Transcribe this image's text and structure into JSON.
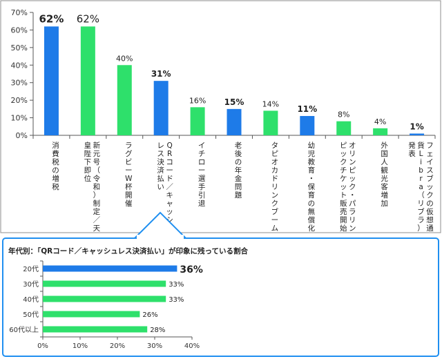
{
  "chart_data": [
    {
      "type": "bar",
      "orientation": "vertical",
      "title": "",
      "ylim": [
        0,
        70
      ],
      "yticks": [
        "0%",
        "10%",
        "20%",
        "30%",
        "40%",
        "50%",
        "60%",
        "70%"
      ],
      "grid": false,
      "categories": [
        "消費税の増税",
        "新元号（令和）制定／天皇陛下即位",
        "ラグビーW杯開催",
        "QRコード／キャッシュレス決済払い",
        "イチロー選手引退",
        "老後の年金問題",
        "タピオカドリンクブーム",
        "幼児教育・保育の無償化",
        "オリンピック・パラリンピックチケット販売開始",
        "外国人観光客増加",
        "フェイスブックの仮想通貨Libra（リブラ）発表"
      ],
      "values": [
        62,
        62,
        40,
        31,
        16,
        15,
        14,
        11,
        8,
        4,
        1
      ],
      "value_labels": [
        "62%",
        "62%",
        "40%",
        "31%",
        "16%",
        "15%",
        "14%",
        "11%",
        "8%",
        "4%",
        "1%"
      ],
      "colors": [
        "#1e7be8",
        "#2ee06b",
        "#2ee06b",
        "#1e7be8",
        "#2ee06b",
        "#1e7be8",
        "#2ee06b",
        "#1e7be8",
        "#2ee06b",
        "#2ee06b",
        "#1e7be8"
      ]
    },
    {
      "type": "bar",
      "orientation": "horizontal",
      "title": "年代別：「QRコード／キャッシュレス決済払い」が印象に残っている割合",
      "xlim": [
        0,
        40
      ],
      "xticks": [
        "0%",
        "10%",
        "20%",
        "30%",
        "40%"
      ],
      "categories": [
        "20代",
        "30代",
        "40代",
        "50代",
        "60代以上"
      ],
      "values": [
        36,
        33,
        33,
        26,
        28
      ],
      "value_labels": [
        "36%",
        "33%",
        "33%",
        "26%",
        "28%"
      ],
      "colors": [
        "#1e7be8",
        "#2ee06b",
        "#2ee06b",
        "#2ee06b",
        "#2ee06b"
      ]
    }
  ]
}
